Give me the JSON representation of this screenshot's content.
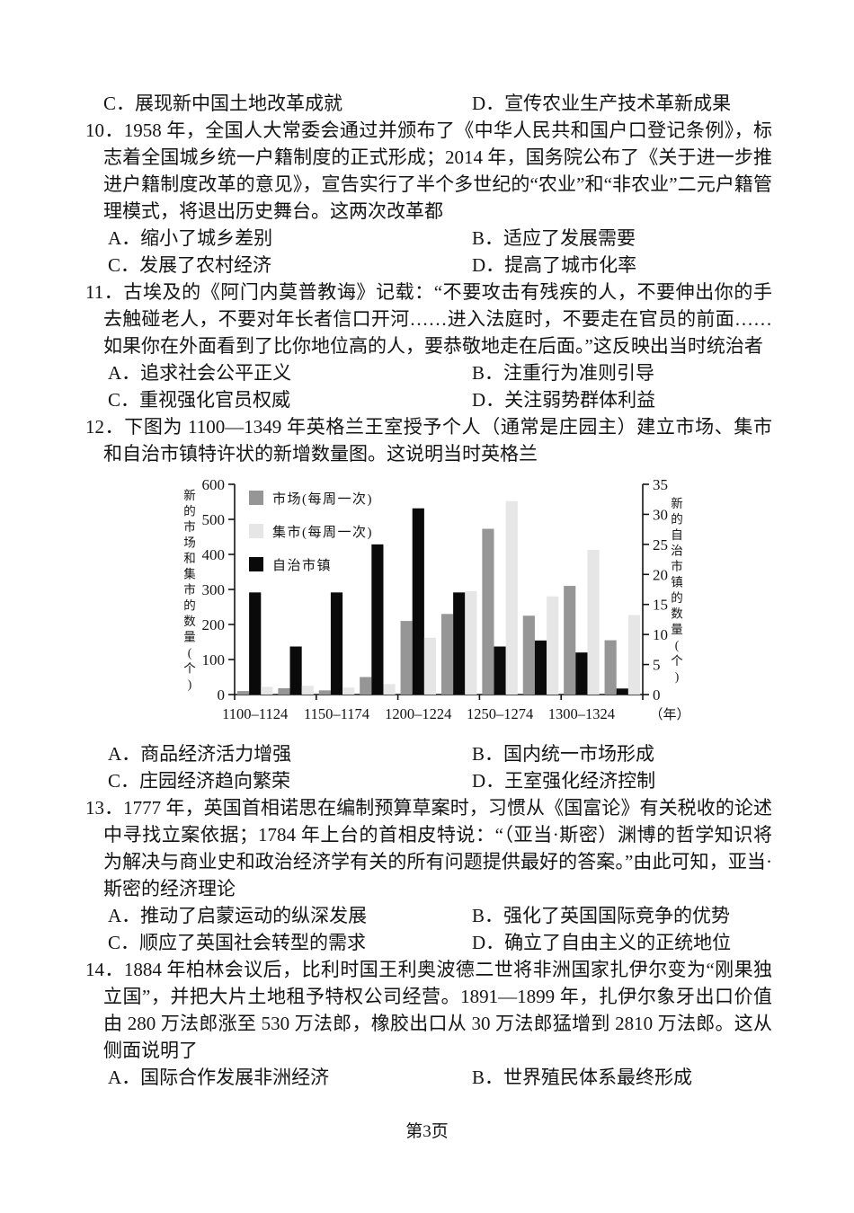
{
  "page": {
    "footer": "第3页"
  },
  "questions": [
    {
      "number": "",
      "stem": "",
      "options": [
        "C．展现新中国土地改革成就",
        "D．宣传农业生产技术革新成果"
      ]
    },
    {
      "number": "10．",
      "stem": "1958 年，全国人大常委会通过并颁布了《中华人民共和国户口登记条例》，标志着全国城乡统一户籍制度的正式形成；2014 年，国务院公布了《关于进一步推进户籍制度改革的意见》，宣告实行了半个多世纪的“农业”和“非农业”二元户籍管理模式，将退出历史舞台。这两次改革都",
      "options": [
        "A．缩小了城乡差别",
        "B．适应了发展需要",
        "C．发展了农村经济",
        "D．提高了城市化率"
      ]
    },
    {
      "number": "11．",
      "stem": "古埃及的《阿门内莫普教诲》记载：“不要攻击有残疾的人，不要伸出你的手去触碰老人，不要对年长者信口开河……进入法庭时，不要走在官员的前面……如果你在外面看到了比你地位高的人，要恭敬地走在后面。”这反映出当时统治者",
      "options": [
        "A．追求社会公平正义",
        "B．注重行为准则引导",
        "C．重视强化官员权威",
        "D．关注弱势群体利益"
      ]
    },
    {
      "number": "12．",
      "stem": "下图为 1100—1349 年英格兰王室授予个人（通常是庄园主）建立市场、集市和自治市镇特许状的新增数量图。这说明当时英格兰",
      "options": [
        "A．商品经济活力增强",
        "B．国内统一市场形成",
        "C．庄园经济趋向繁荣",
        "D．王室强化经济控制"
      ]
    },
    {
      "number": "13．",
      "stem": "1777 年，英国首相诺思在编制预算草案时，习惯从《国富论》有关税收的论述中寻找立案依据；1784 年上台的首相皮特说：“（亚当·斯密）渊博的哲学知识将为解决与商业史和政治经济学有关的所有问题提供最好的答案。”由此可知，亚当·斯密的经济理论",
      "options": [
        "A．推动了启蒙运动的纵深发展",
        "B．强化了英国国际竞争的优势",
        "C．顺应了英国社会转型的需求",
        "D．确立了自由主义的正统地位"
      ]
    },
    {
      "number": "14．",
      "stem": "1884 年柏林会议后，比利时国王利奥波德二世将非洲国家扎伊尔变为“刚果独立国”，并把大片土地租予特权公司经营。1891—1899 年，扎伊尔象牙出口价值由 280 万法郎涨至 530 万法郎，橡胶出口从 30 万法郎猛增到 2810 万法郎。这从侧面说明了",
      "options": [
        "A．国际合作发展非洲经济",
        "B．世界殖民体系最终形成"
      ]
    }
  ],
  "chart_data": {
    "type": "bar",
    "categories": [
      "1100–1124",
      "1125–1149",
      "1150–1174",
      "1175–1199",
      "1200–1224",
      "1225–1249",
      "1250–1274",
      "1275–1299",
      "1300–1324",
      "1325–1349"
    ],
    "series": [
      {
        "name": "市场(每周一次)",
        "axis": "left",
        "color": "#969696",
        "values": [
          10,
          18,
          12,
          50,
          210,
          230,
          473,
          225,
          310,
          155
        ]
      },
      {
        "name": "集市(每周一次)",
        "axis": "left",
        "color": "#e6e6e6",
        "values": [
          22,
          25,
          20,
          30,
          162,
          295,
          552,
          280,
          413,
          227
        ]
      },
      {
        "name": "自治市镇",
        "axis": "right",
        "color": "#0a0a0a",
        "values": [
          17,
          8,
          17,
          25,
          31,
          17,
          8,
          9,
          7,
          1
        ]
      }
    ],
    "draw_order": [
      0,
      2,
      1
    ],
    "left_axis": {
      "label": "新的市场和集市的数量(个)",
      "min": 0,
      "max": 600,
      "step": 100
    },
    "right_axis": {
      "label": "新的自治市镇的数量(个)",
      "min": 0,
      "max": 35,
      "step": 5
    },
    "x_axis": {
      "tick_labels": [
        "1100–1124",
        "1150–1174",
        "1200–1224",
        "1250–1274",
        "1300–1324"
      ],
      "unit_label": "（年）"
    },
    "grid": false,
    "legend_position": "top-left-inside"
  }
}
